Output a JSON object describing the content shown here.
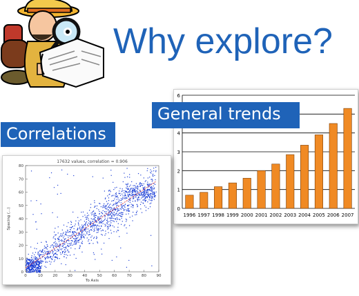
{
  "slide": {
    "title": "Why explore?",
    "label_correlations": "Correlations",
    "label_general_trends": "General trends"
  },
  "chart_data": [
    {
      "type": "bar",
      "categories": [
        "1996",
        "1997",
        "1998",
        "1999",
        "2000",
        "2001",
        "2002",
        "2003",
        "2004",
        "2005",
        "2006",
        "2007"
      ],
      "values": [
        0.7,
        0.85,
        1.15,
        1.35,
        1.6,
        2.0,
        2.35,
        2.85,
        3.35,
        3.9,
        4.5,
        5.3
      ],
      "ylim": [
        0,
        6
      ],
      "yticks": [
        "0",
        "1",
        "2",
        "3",
        "4",
        "5",
        "6"
      ],
      "grid": true,
      "color": "#f08a24"
    },
    {
      "type": "scatter",
      "title": "17632 values, correlation = 0.906",
      "xlabel": "To Axis",
      "ylabel": "Spacing (...)",
      "xlim": [
        0,
        90
      ],
      "ylim": [
        0,
        80
      ],
      "xticks": [
        "0",
        "10",
        "20",
        "30",
        "40",
        "50",
        "60",
        "70",
        "80",
        "90"
      ],
      "yticks": [
        "0",
        "10",
        "20",
        "30",
        "40",
        "50",
        "60",
        "70",
        "80"
      ],
      "point_color": "#1c3fd6",
      "trend_color": "#d2202a"
    }
  ]
}
